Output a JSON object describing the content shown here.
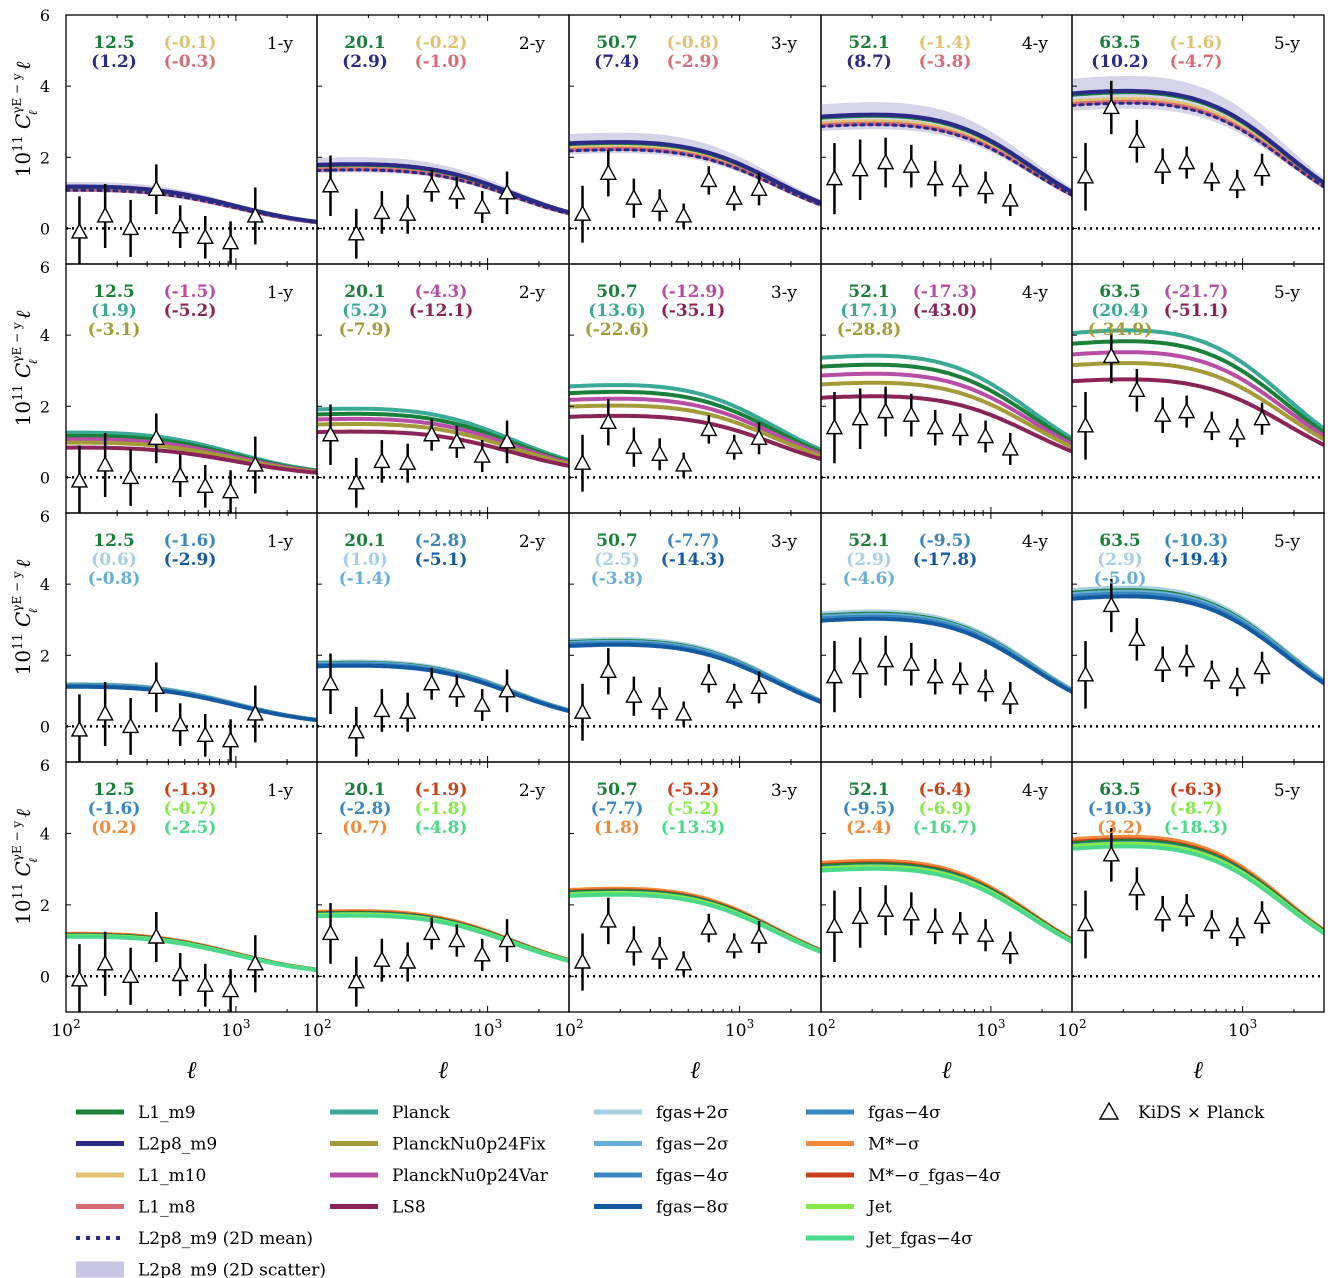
{
  "chart_data": {
    "type": "line",
    "layout": {
      "rows": 4,
      "cols": 5
    },
    "xscale": "log",
    "xlim": [
      100,
      3000
    ],
    "ylim": [
      -1,
      6
    ],
    "xlabel": "ℓ",
    "ylabel_prefix": "10",
    "ylabel_exp": "11",
    "ylabel_C": "C",
    "ylabel_sub": "ℓ",
    "ylabel_sup": "γE − y",
    "ylabel_suffix": " ℓ",
    "xtick_base": "10",
    "xtick_exps": [
      "2",
      "3"
    ],
    "ytick_labels": [
      "0",
      "2",
      "4",
      "6"
    ],
    "panel_labels": [
      "1-y",
      "2-y",
      "3-y",
      "4-y",
      "5-y"
    ],
    "colors": {
      "L1_m9": "#1a7f3a",
      "L2p8_m9": "#2b2a86",
      "L1_m10": "#e0c270",
      "L1_m8": "#d76b76",
      "Planck": "#3aaa96",
      "PlanckNu0p24Fix": "#a39b38",
      "PlanckNu0p24Var": "#b84da6",
      "LS8": "#8a2458",
      "fgas+2σ": "#a9cfe5",
      "fgas−2σ": "#6aaed6",
      "fgas−4σ": "#3a86c0",
      "fgas−8σ": "#145aa0",
      "M*−σ": "#f28a3c",
      "M*−σ_fgas−4σ": "#c9401a",
      "Jet": "#86ea4a",
      "Jet_fgas−4σ": "#4ad98a",
      "data": "#000000"
    },
    "kids_data": [
      {
        "bin": "1-y",
        "x": [
          120,
          170,
          240,
          340,
          470,
          660,
          930,
          1300
        ],
        "y": [
          -0.1,
          0.35,
          0.0,
          1.1,
          0.05,
          -0.25,
          -0.4,
          0.35
        ],
        "err": [
          1.0,
          0.9,
          0.8,
          0.7,
          0.6,
          0.6,
          0.6,
          0.8
        ]
      },
      {
        "bin": "2-y",
        "x": [
          120,
          170,
          240,
          340,
          470,
          660,
          930,
          1300
        ],
        "y": [
          1.2,
          -0.15,
          0.45,
          0.4,
          1.2,
          1.0,
          0.6,
          1.0
        ],
        "err": [
          0.85,
          0.7,
          0.6,
          0.55,
          0.45,
          0.45,
          0.45,
          0.6
        ]
      },
      {
        "bin": "3-y",
        "x": [
          120,
          170,
          240,
          340,
          470,
          660,
          930,
          1300
        ],
        "y": [
          0.4,
          1.55,
          0.85,
          0.65,
          0.35,
          1.35,
          0.85,
          1.1
        ],
        "err": [
          0.8,
          0.65,
          0.55,
          0.45,
          0.35,
          0.4,
          0.35,
          0.45
        ]
      },
      {
        "bin": "4-y",
        "x": [
          120,
          170,
          240,
          340,
          470,
          660,
          930,
          1300
        ],
        "y": [
          1.4,
          1.65,
          1.85,
          1.75,
          1.4,
          1.35,
          1.15,
          0.8
        ],
        "err": [
          1.0,
          0.85,
          0.7,
          0.6,
          0.5,
          0.45,
          0.45,
          0.45
        ]
      },
      {
        "bin": "5-y",
        "x": [
          120,
          170,
          240,
          340,
          470,
          660,
          930,
          1300
        ],
        "y": [
          1.45,
          3.4,
          2.45,
          1.75,
          1.85,
          1.45,
          1.25,
          1.65
        ],
        "err": [
          0.95,
          0.75,
          0.6,
          0.5,
          0.45,
          0.4,
          0.4,
          0.45
        ]
      }
    ],
    "model_bins": [
      {
        "bin": "1-y",
        "amp": 1.2,
        "knee": 900
      },
      {
        "bin": "2-y",
        "amp": 1.8,
        "knee": 1300
      },
      {
        "bin": "3-y",
        "amp": 2.4,
        "knee": 1500
      },
      {
        "bin": "4-y",
        "amp": 3.15,
        "knee": 1600
      },
      {
        "bin": "5-y",
        "amp": 3.8,
        "knee": 1650
      }
    ],
    "rows": [
      {
        "row": 1,
        "series": [
          {
            "name": "L2p8_m9 (2D scatter)",
            "kind": "band",
            "color": "#c8c6e2",
            "scale": 1.0,
            "width": 0.12
          },
          {
            "name": "L1_m10",
            "color": "#e0c270",
            "scale": 0.95
          },
          {
            "name": "L1_m8",
            "color": "#d76b76",
            "scale": 0.93
          },
          {
            "name": "L1_m9",
            "color": "#1a7f3a",
            "scale": 1.0
          },
          {
            "name": "L2p8_m9",
            "color": "#2b2a86",
            "scale": 1.01
          },
          {
            "name": "L2p8_m9 (2D mean)",
            "kind": "dotted",
            "color": "#2b2a86",
            "scale": 0.92
          }
        ],
        "annotations": [
          {
            "texts": [
              "12.5",
              "(1.2)"
            ],
            "colors": [
              "#1a7f3a",
              "#2b2a86"
            ],
            "more": [
              [
                "(-0.1)",
                "(-0.3)"
              ],
              [
                "#e0c270",
                "#d76b76"
              ]
            ]
          },
          {
            "texts": [
              "20.1",
              "(2.9)"
            ],
            "colors": [
              "#1a7f3a",
              "#2b2a86"
            ],
            "more": [
              [
                "(-0.2)",
                "(-1.0)"
              ],
              [
                "#e0c270",
                "#d76b76"
              ]
            ]
          },
          {
            "texts": [
              "50.7",
              "(7.4)"
            ],
            "colors": [
              "#1a7f3a",
              "#2b2a86"
            ],
            "more": [
              [
                "(-0.8)",
                "(-2.9)"
              ],
              [
                "#e0c270",
                "#d76b76"
              ]
            ]
          },
          {
            "texts": [
              "52.1",
              "(8.7)"
            ],
            "colors": [
              "#1a7f3a",
              "#2b2a86"
            ],
            "more": [
              [
                "(-1.4)",
                "(-3.8)"
              ],
              [
                "#e0c270",
                "#d76b76"
              ]
            ]
          },
          {
            "texts": [
              "63.5",
              "(10.2)"
            ],
            "colors": [
              "#1a7f3a",
              "#2b2a86"
            ],
            "more": [
              [
                "(-1.6)",
                "(-4.7)"
              ],
              [
                "#e0c270",
                "#d76b76"
              ]
            ]
          }
        ]
      },
      {
        "row": 2,
        "series": [
          {
            "name": "Planck",
            "color": "#3aaa96",
            "scale": 1.08
          },
          {
            "name": "L1_m9",
            "color": "#1a7f3a",
            "scale": 1.0
          },
          {
            "name": "PlanckNu0p24Var",
            "color": "#b84da6",
            "scale": 0.92
          },
          {
            "name": "PlanckNu0p24Fix",
            "color": "#a39b38",
            "scale": 0.84
          },
          {
            "name": "LS8",
            "color": "#8a2458",
            "scale": 0.72
          }
        ],
        "annotations": [
          {
            "texts": [
              "12.5",
              "(1.9)",
              "(-3.1)"
            ],
            "colors": [
              "#1a7f3a",
              "#3aaa96",
              "#a39b38"
            ],
            "more": [
              [
                "(-1.5)",
                "(-5.2)"
              ],
              [
                "#b84da6",
                "#8a2458"
              ]
            ]
          },
          {
            "texts": [
              "20.1",
              "(5.2)",
              "(-7.9)"
            ],
            "colors": [
              "#1a7f3a",
              "#3aaa96",
              "#a39b38"
            ],
            "more": [
              [
                "(-4.3)",
                "(-12.1)"
              ],
              [
                "#b84da6",
                "#8a2458"
              ]
            ]
          },
          {
            "texts": [
              "50.7",
              "(13.6)",
              "(-22.6)"
            ],
            "colors": [
              "#1a7f3a",
              "#3aaa96",
              "#a39b38"
            ],
            "more": [
              [
                "(-12.9)",
                "(-35.1)"
              ],
              [
                "#b84da6",
                "#8a2458"
              ]
            ]
          },
          {
            "texts": [
              "52.1",
              "(17.1)",
              "(-28.8)"
            ],
            "colors": [
              "#1a7f3a",
              "#3aaa96",
              "#a39b38"
            ],
            "more": [
              [
                "(-17.3)",
                "(-43.0)"
              ],
              [
                "#b84da6",
                "#8a2458"
              ]
            ]
          },
          {
            "texts": [
              "63.5",
              "(20.4)",
              "(-34.9)"
            ],
            "colors": [
              "#1a7f3a",
              "#3aaa96",
              "#a39b38"
            ],
            "more": [
              [
                "(-21.7)",
                "(-51.1)"
              ],
              [
                "#b84da6",
                "#8a2458"
              ]
            ]
          }
        ]
      },
      {
        "row": 3,
        "series": [
          {
            "name": "fgas+2σ",
            "color": "#a9cfe5",
            "scale": 1.02
          },
          {
            "name": "L1_m9",
            "color": "#1a7f3a",
            "scale": 1.0
          },
          {
            "name": "fgas−2σ",
            "color": "#6aaed6",
            "scale": 0.99
          },
          {
            "name": "fgas−4σ",
            "color": "#3a86c0",
            "scale": 0.975
          },
          {
            "name": "fgas−8σ",
            "color": "#145aa0",
            "scale": 0.955
          }
        ],
        "annotations": [
          {
            "texts": [
              "12.5",
              "(0.6)",
              "(-0.8)"
            ],
            "colors": [
              "#1a7f3a",
              "#a9cfe5",
              "#6aaed6"
            ],
            "more": [
              [
                "(-1.6)",
                "(-2.9)"
              ],
              [
                "#3a86c0",
                "#145aa0"
              ]
            ]
          },
          {
            "texts": [
              "20.1",
              "(1.0)",
              "(-1.4)"
            ],
            "colors": [
              "#1a7f3a",
              "#a9cfe5",
              "#6aaed6"
            ],
            "more": [
              [
                "(-2.8)",
                "(-5.1)"
              ],
              [
                "#3a86c0",
                "#145aa0"
              ]
            ]
          },
          {
            "texts": [
              "50.7",
              "(2.5)",
              "(-3.8)"
            ],
            "colors": [
              "#1a7f3a",
              "#a9cfe5",
              "#6aaed6"
            ],
            "more": [
              [
                "(-7.7)",
                "(-14.3)"
              ],
              [
                "#3a86c0",
                "#145aa0"
              ]
            ]
          },
          {
            "texts": [
              "52.1",
              "(2.9)",
              "(-4.6)"
            ],
            "colors": [
              "#1a7f3a",
              "#a9cfe5",
              "#6aaed6"
            ],
            "more": [
              [
                "(-9.5)",
                "(-17.8)"
              ],
              [
                "#3a86c0",
                "#145aa0"
              ]
            ]
          },
          {
            "texts": [
              "63.5",
              "(2.9)",
              "(-5.0)"
            ],
            "colors": [
              "#1a7f3a",
              "#a9cfe5",
              "#6aaed6"
            ],
            "more": [
              [
                "(-10.3)",
                "(-19.4)"
              ],
              [
                "#3a86c0",
                "#145aa0"
              ]
            ]
          }
        ]
      },
      {
        "row": 4,
        "series": [
          {
            "name": "M*−σ",
            "color": "#f28a3c",
            "scale": 1.02
          },
          {
            "name": "M*−σ_fgas−4σ",
            "color": "#c9401a",
            "scale": 1.0
          },
          {
            "name": "L1_m9",
            "color": "#1a7f3a",
            "scale": 0.99
          },
          {
            "name": "fgas−4σ",
            "color": "#3a86c0",
            "scale": 0.975
          },
          {
            "name": "Jet",
            "color": "#86ea4a",
            "scale": 0.97
          },
          {
            "name": "Jet_fgas−4σ",
            "color": "#4ad98a",
            "scale": 0.95
          }
        ],
        "annotations": [
          {
            "texts": [
              "12.5",
              "(-1.6)",
              "(0.2)"
            ],
            "colors": [
              "#1a7f3a",
              "#3a86c0",
              "#f28a3c"
            ],
            "more": [
              [
                "(-1.3)",
                "(-0.7)",
                "(-2.5)"
              ],
              [
                "#c9401a",
                "#86ea4a",
                "#4ad98a"
              ]
            ]
          },
          {
            "texts": [
              "20.1",
              "(-2.8)",
              "(0.7)"
            ],
            "colors": [
              "#1a7f3a",
              "#3a86c0",
              "#f28a3c"
            ],
            "more": [
              [
                "(-1.9)",
                "(-1.8)",
                "(-4.8)"
              ],
              [
                "#c9401a",
                "#86ea4a",
                "#4ad98a"
              ]
            ]
          },
          {
            "texts": [
              "50.7",
              "(-7.7)",
              "(1.8)"
            ],
            "colors": [
              "#1a7f3a",
              "#3a86c0",
              "#f28a3c"
            ],
            "more": [
              [
                "(-5.2)",
                "(-5.2)",
                "(-13.3)"
              ],
              [
                "#c9401a",
                "#86ea4a",
                "#4ad98a"
              ]
            ]
          },
          {
            "texts": [
              "52.1",
              "(-9.5)",
              "(2.4)"
            ],
            "colors": [
              "#1a7f3a",
              "#3a86c0",
              "#f28a3c"
            ],
            "more": [
              [
                "(-6.4)",
                "(-6.9)",
                "(-16.7)"
              ],
              [
                "#c9401a",
                "#86ea4a",
                "#4ad98a"
              ]
            ]
          },
          {
            "texts": [
              "63.5",
              "(-10.3)",
              "(3.2)"
            ],
            "colors": [
              "#1a7f3a",
              "#3a86c0",
              "#f28a3c"
            ],
            "more": [
              [
                "(-6.3)",
                "(-8.7)",
                "(-18.3)"
              ],
              [
                "#c9401a",
                "#86ea4a",
                "#4ad98a"
              ]
            ]
          }
        ]
      }
    ],
    "legend": {
      "placement": "bottom",
      "columns": [
        [
          {
            "label": "L1_m9",
            "color": "#1a7f3a",
            "kind": "line"
          },
          {
            "label": "L2p8_m9",
            "color": "#2b2a86",
            "kind": "line"
          },
          {
            "label": "L1_m10",
            "color": "#e0c270",
            "kind": "line"
          },
          {
            "label": "L1_m8",
            "color": "#d76b76",
            "kind": "line"
          },
          {
            "label": "L2p8_m9 (2D mean)",
            "color": "#2b2a86",
            "kind": "dotted"
          },
          {
            "label": "L2p8_m9 (2D scatter)",
            "color": "#c8c6e2",
            "kind": "band"
          }
        ],
        [
          {
            "label": "Planck",
            "color": "#3aaa96",
            "kind": "line"
          },
          {
            "label": "PlanckNu0p24Fix",
            "color": "#a39b38",
            "kind": "line"
          },
          {
            "label": "PlanckNu0p24Var",
            "color": "#b84da6",
            "kind": "line"
          },
          {
            "label": "LS8",
            "color": "#8a2458",
            "kind": "line"
          }
        ],
        [
          {
            "label": "fgas+2σ",
            "color": "#a9cfe5",
            "kind": "line"
          },
          {
            "label": "fgas−2σ",
            "color": "#6aaed6",
            "kind": "line"
          },
          {
            "label": "fgas−4σ",
            "color": "#3a86c0",
            "kind": "line"
          },
          {
            "label": "fgas−8σ",
            "color": "#145aa0",
            "kind": "line"
          }
        ],
        [
          {
            "label": "fgas−4σ",
            "color": "#3a86c0",
            "kind": "line"
          },
          {
            "label": "M*−σ",
            "color": "#f28a3c",
            "kind": "line"
          },
          {
            "label": "M*−σ_fgas−4σ",
            "color": "#c9401a",
            "kind": "line"
          },
          {
            "label": "Jet",
            "color": "#86ea4a",
            "kind": "line"
          },
          {
            "label": "Jet_fgas−4σ",
            "color": "#4ad98a",
            "kind": "line"
          }
        ],
        [
          {
            "label": "KiDS × Planck",
            "color": "#000000",
            "kind": "triangle"
          }
        ]
      ]
    }
  }
}
